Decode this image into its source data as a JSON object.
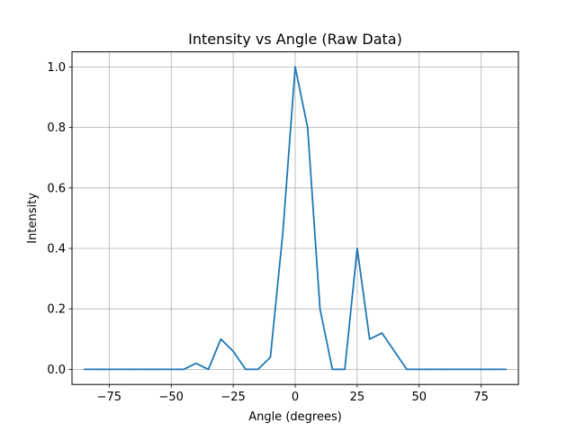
{
  "chart_data": {
    "type": "line",
    "title": "Intensity vs Angle (Raw Data)",
    "xlabel": "Angle (degrees)",
    "ylabel": "Intensity",
    "xlim": [
      -90,
      90
    ],
    "ylim": [
      -0.05,
      1.05
    ],
    "xticks": [
      -75,
      -50,
      -25,
      0,
      25,
      50,
      75
    ],
    "xtick_labels": [
      "−75",
      "−50",
      "−25",
      "0",
      "25",
      "50",
      "75"
    ],
    "yticks": [
      0.0,
      0.2,
      0.4,
      0.6,
      0.8,
      1.0
    ],
    "ytick_labels": [
      "0.0",
      "0.2",
      "0.4",
      "0.6",
      "0.8",
      "1.0"
    ],
    "grid": true,
    "line_color": "#1f77b4",
    "series": [
      {
        "x": [
          -85,
          -80,
          -75,
          -70,
          -65,
          -60,
          -55,
          -50,
          -45,
          -40,
          -35,
          -30,
          -25,
          -20,
          -15,
          -10,
          -5,
          0,
          5,
          10,
          15,
          20,
          25,
          30,
          35,
          40,
          45,
          50,
          55,
          60,
          65,
          70,
          75,
          80,
          85
        ],
        "y": [
          0,
          0,
          0,
          0,
          0,
          0,
          0,
          0,
          0,
          0.02,
          0,
          0.1,
          0.06,
          0,
          0,
          0.04,
          0.45,
          1.0,
          0.8,
          0.2,
          0,
          0,
          0.4,
          0.1,
          0.12,
          0.06,
          0,
          0,
          0,
          0,
          0,
          0,
          0,
          0,
          0
        ]
      }
    ]
  }
}
